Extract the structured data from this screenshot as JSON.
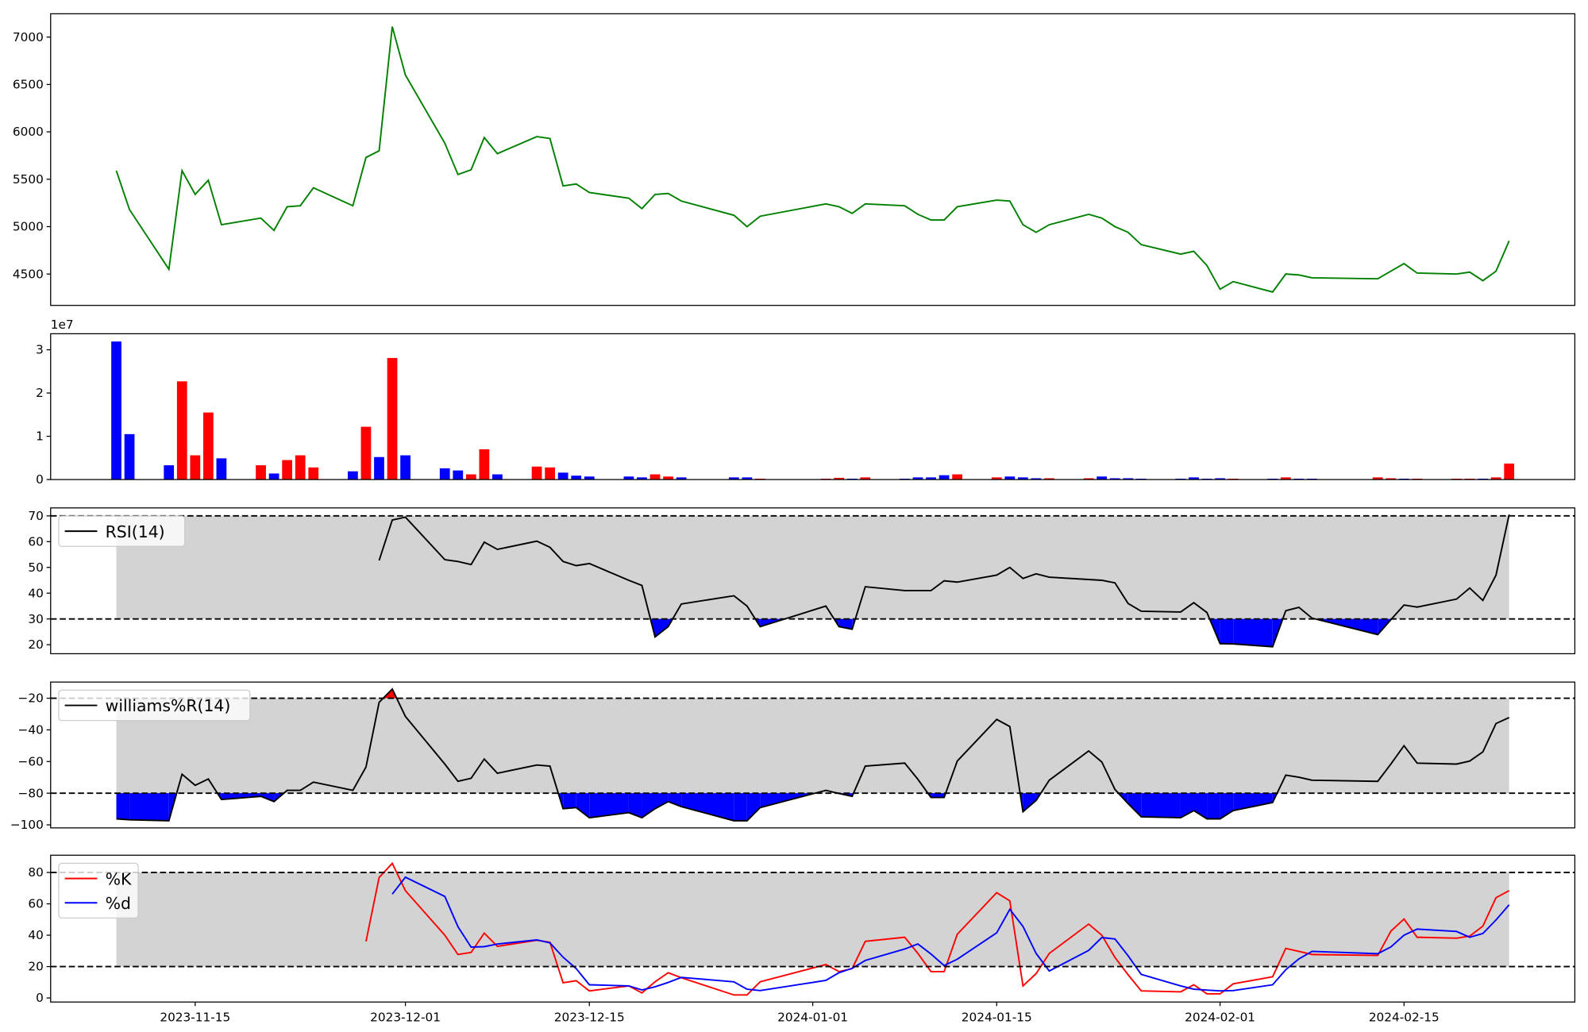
{
  "chart_data": [
    {
      "type": "line",
      "x": [
        "2023-11-09",
        "2023-11-10",
        "2023-11-13",
        "2023-11-14",
        "2023-11-15",
        "2023-11-16",
        "2023-11-17",
        "2023-11-20",
        "2023-11-21",
        "2023-11-22",
        "2023-11-23",
        "2023-11-24",
        "2023-11-27",
        "2023-11-28",
        "2023-11-29",
        "2023-11-30",
        "2023-12-01",
        "2023-12-04",
        "2023-12-05",
        "2023-12-06",
        "2023-12-07",
        "2023-12-08",
        "2023-12-11",
        "2023-12-12",
        "2023-12-13",
        "2023-12-14",
        "2023-12-15",
        "2023-12-18",
        "2023-12-19",
        "2023-12-20",
        "2023-12-21",
        "2023-12-22",
        "2023-12-26",
        "2023-12-27",
        "2023-12-28",
        "2024-01-02",
        "2024-01-03",
        "2024-01-04",
        "2024-01-05",
        "2024-01-08",
        "2024-01-09",
        "2024-01-10",
        "2024-01-11",
        "2024-01-12",
        "2024-01-15",
        "2024-01-16",
        "2024-01-17",
        "2024-01-18",
        "2024-01-19",
        "2024-01-22",
        "2024-01-23",
        "2024-01-24",
        "2024-01-25",
        "2024-01-26",
        "2024-01-29",
        "2024-01-30",
        "2024-01-31",
        "2024-02-01",
        "2024-02-02",
        "2024-02-05",
        "2024-02-06",
        "2024-02-07",
        "2024-02-08",
        "2024-02-13",
        "2024-02-14",
        "2024-02-15",
        "2024-02-16",
        "2024-02-19",
        "2024-02-20",
        "2024-02-21",
        "2024-02-22",
        "2024-02-23"
      ],
      "values": [
        5590,
        5180,
        4550,
        5590,
        5340,
        5490,
        5020,
        5090,
        4960,
        5210,
        5220,
        5410,
        5220,
        5730,
        5800,
        7110,
        6600,
        5880,
        5550,
        5600,
        5940,
        5770,
        5950,
        5930,
        5430,
        5450,
        5360,
        5300,
        5190,
        5340,
        5350,
        5270,
        5120,
        5000,
        5110,
        5240,
        5210,
        5140,
        5240,
        5220,
        5130,
        5070,
        5070,
        5210,
        5280,
        5270,
        5020,
        4940,
        5020,
        5130,
        5090,
        5000,
        4940,
        4810,
        4710,
        4740,
        4590,
        4340,
        4420,
        4310,
        4500,
        4490,
        4460,
        4450,
        4530,
        4610,
        4510,
        4500,
        4520,
        4430,
        4530,
        4850
      ],
      "color": "#008000",
      "xlim": [
        "2023-11-04",
        "2024-02-28"
      ],
      "ylim": [
        4169,
        7246
      ],
      "yticks": [
        4500,
        5000,
        5500,
        6000,
        6500,
        7000
      ]
    },
    {
      "type": "bar",
      "x": [
        "2023-11-09",
        "2023-11-10",
        "2023-11-13",
        "2023-11-14",
        "2023-11-15",
        "2023-11-16",
        "2023-11-17",
        "2023-11-20",
        "2023-11-21",
        "2023-11-22",
        "2023-11-23",
        "2023-11-24",
        "2023-11-27",
        "2023-11-28",
        "2023-11-29",
        "2023-11-30",
        "2023-12-01",
        "2023-12-04",
        "2023-12-05",
        "2023-12-06",
        "2023-12-07",
        "2023-12-08",
        "2023-12-11",
        "2023-12-12",
        "2023-12-13",
        "2023-12-14",
        "2023-12-15",
        "2023-12-18",
        "2023-12-19",
        "2023-12-20",
        "2023-12-21",
        "2023-12-22",
        "2023-12-26",
        "2023-12-27",
        "2023-12-28",
        "2024-01-02",
        "2024-01-03",
        "2024-01-04",
        "2024-01-05",
        "2024-01-08",
        "2024-01-09",
        "2024-01-10",
        "2024-01-11",
        "2024-01-12",
        "2024-01-15",
        "2024-01-16",
        "2024-01-17",
        "2024-01-18",
        "2024-01-19",
        "2024-01-22",
        "2024-01-23",
        "2024-01-24",
        "2024-01-25",
        "2024-01-26",
        "2024-01-29",
        "2024-01-30",
        "2024-01-31",
        "2024-02-01",
        "2024-02-02",
        "2024-02-05",
        "2024-02-06",
        "2024-02-07",
        "2024-02-08",
        "2024-02-13",
        "2024-02-14",
        "2024-02-15",
        "2024-02-16",
        "2024-02-19",
        "2024-02-20",
        "2024-02-21",
        "2024-02-22",
        "2024-02-23"
      ],
      "values": [
        3.19,
        1.05,
        0.33,
        2.27,
        0.56,
        1.55,
        0.49,
        0.33,
        0.14,
        0.45,
        0.56,
        0.28,
        0.19,
        1.22,
        0.52,
        2.81,
        0.56,
        0.26,
        0.21,
        0.12,
        0.7,
        0.12,
        0.3,
        0.28,
        0.16,
        0.09,
        0.07,
        0.07,
        0.05,
        0.12,
        0.07,
        0.05,
        0.05,
        0.05,
        0.02,
        0.02,
        0.04,
        0.02,
        0.05,
        0.02,
        0.05,
        0.05,
        0.1,
        0.12,
        0.05,
        0.07,
        0.05,
        0.03,
        0.03,
        0.03,
        0.07,
        0.03,
        0.03,
        0.02,
        0.02,
        0.05,
        0.02,
        0.03,
        0.02,
        0.02,
        0.05,
        0.02,
        0.02,
        0.05,
        0.03,
        0.02,
        0.02,
        0.02,
        0.02,
        0.02,
        0.05,
        0.37
      ],
      "colors": [
        "blue",
        "blue",
        "blue",
        "red",
        "red",
        "red",
        "blue",
        "red",
        "blue",
        "red",
        "red",
        "red",
        "blue",
        "red",
        "blue",
        "red",
        "blue",
        "blue",
        "blue",
        "red",
        "red",
        "blue",
        "red",
        "red",
        "blue",
        "blue",
        "blue",
        "blue",
        "blue",
        "red",
        "red",
        "blue",
        "blue",
        "blue",
        "red",
        "red",
        "red",
        "blue",
        "red",
        "blue",
        "blue",
        "blue",
        "blue",
        "red",
        "red",
        "blue",
        "blue",
        "blue",
        "red",
        "red",
        "blue",
        "blue",
        "blue",
        "blue",
        "blue",
        "blue",
        "blue",
        "blue",
        "red",
        "blue",
        "red",
        "blue",
        "blue",
        "red",
        "red",
        "blue",
        "red",
        "red",
        "red",
        "blue",
        "red",
        "red"
      ],
      "offset_text": "1e7",
      "xlim": [
        "2023-11-04",
        "2024-02-28"
      ],
      "ylim": [
        0,
        3.37
      ],
      "yticks": [
        0,
        1,
        2,
        3
      ]
    },
    {
      "type": "line",
      "x": [
        "2023-11-09",
        "2023-11-10",
        "2023-11-13",
        "2023-11-14",
        "2023-11-15",
        "2023-11-16",
        "2023-11-17",
        "2023-11-20",
        "2023-11-21",
        "2023-11-22",
        "2023-11-23",
        "2023-11-24",
        "2023-11-27",
        "2023-11-28",
        "2023-11-29",
        "2023-11-30",
        "2023-12-01",
        "2023-12-04",
        "2023-12-05",
        "2023-12-06",
        "2023-12-07",
        "2023-12-08",
        "2023-12-11",
        "2023-12-12",
        "2023-12-13",
        "2023-12-14",
        "2023-12-15",
        "2023-12-18",
        "2023-12-19",
        "2023-12-20",
        "2023-12-21",
        "2023-12-22",
        "2023-12-26",
        "2023-12-27",
        "2023-12-28",
        "2024-01-02",
        "2024-01-03",
        "2024-01-04",
        "2024-01-05",
        "2024-01-08",
        "2024-01-09",
        "2024-01-10",
        "2024-01-11",
        "2024-01-12",
        "2024-01-15",
        "2024-01-16",
        "2024-01-17",
        "2024-01-18",
        "2024-01-19",
        "2024-01-22",
        "2024-01-23",
        "2024-01-24",
        "2024-01-25",
        "2024-01-26",
        "2024-01-29",
        "2024-01-30",
        "2024-01-31",
        "2024-02-01",
        "2024-02-02",
        "2024-02-05",
        "2024-02-06",
        "2024-02-07",
        "2024-02-08",
        "2024-02-13",
        "2024-02-14",
        "2024-02-15",
        "2024-02-16",
        "2024-02-19",
        "2024-02-20",
        "2024-02-21",
        "2024-02-22",
        "2024-02-23"
      ],
      "series": [
        {
          "name": "RSI(14)",
          "color": "#000000",
          "values": [
            null,
            null,
            null,
            null,
            null,
            null,
            null,
            null,
            null,
            null,
            null,
            null,
            null,
            null,
            52.7,
            68.4,
            69.5,
            53,
            52.3,
            51.1,
            59.8,
            57,
            60.2,
            57.8,
            52.3,
            50.7,
            51.5,
            45,
            43,
            23,
            27,
            35.8,
            39,
            35,
            27,
            35,
            27,
            26,
            42.5,
            41,
            41,
            41,
            44.8,
            44.3,
            47,
            50,
            45.7,
            47.5,
            46.2,
            45.3,
            45,
            44,
            36,
            33,
            32.7,
            36.3,
            32.5,
            20.4,
            20.3,
            19.2,
            33.2,
            34.5,
            30.3,
            23.9,
            29.7,
            35.4,
            34.6,
            37.7,
            42,
            37.2,
            47,
            70.5
          ]
        }
      ],
      "band": [
        30,
        70
      ],
      "band_color": "#d3d3d3",
      "fill_below_color": "blue",
      "legend": "upper left",
      "xlim": [
        "2023-11-04",
        "2024-02-28"
      ],
      "ylim": [
        16.5,
        73.1
      ],
      "yticks": [
        20,
        30,
        40,
        50,
        60,
        70
      ]
    },
    {
      "type": "line",
      "x": [
        "2023-11-09",
        "2023-11-10",
        "2023-11-13",
        "2023-11-14",
        "2023-11-15",
        "2023-11-16",
        "2023-11-17",
        "2023-11-20",
        "2023-11-21",
        "2023-11-22",
        "2023-11-23",
        "2023-11-24",
        "2023-11-27",
        "2023-11-28",
        "2023-11-29",
        "2023-11-30",
        "2023-12-01",
        "2023-12-04",
        "2023-12-05",
        "2023-12-06",
        "2023-12-07",
        "2023-12-08",
        "2023-12-11",
        "2023-12-12",
        "2023-12-13",
        "2023-12-14",
        "2023-12-15",
        "2023-12-18",
        "2023-12-19",
        "2023-12-20",
        "2023-12-21",
        "2023-12-22",
        "2023-12-26",
        "2023-12-27",
        "2023-12-28",
        "2024-01-02",
        "2024-01-03",
        "2024-01-04",
        "2024-01-05",
        "2024-01-08",
        "2024-01-09",
        "2024-01-10",
        "2024-01-11",
        "2024-01-12",
        "2024-01-15",
        "2024-01-16",
        "2024-01-17",
        "2024-01-18",
        "2024-01-19",
        "2024-01-22",
        "2024-01-23",
        "2024-01-24",
        "2024-01-25",
        "2024-01-26",
        "2024-01-29",
        "2024-01-30",
        "2024-01-31",
        "2024-02-01",
        "2024-02-02",
        "2024-02-05",
        "2024-02-06",
        "2024-02-07",
        "2024-02-08",
        "2024-02-13",
        "2024-02-14",
        "2024-02-15",
        "2024-02-16",
        "2024-02-19",
        "2024-02-20",
        "2024-02-21",
        "2024-02-22",
        "2024-02-23"
      ],
      "series": [
        {
          "name": "williams%R(14)",
          "color": "#000000",
          "values": [
            -96.2,
            -96.8,
            -97.4,
            -68,
            -75,
            -71,
            -84,
            -82,
            -85.3,
            -78.2,
            -78.2,
            -73,
            -78.2,
            -63.5,
            -22.6,
            -14.2,
            -31.5,
            -61.6,
            -72.5,
            -70.6,
            -58.4,
            -67.4,
            -62.2,
            -62.9,
            -89.8,
            -89.1,
            -95.5,
            -92.3,
            -95.5,
            -89.8,
            -85.3,
            -88.5,
            -97.4,
            -97.4,
            -89.1,
            -78.2,
            -80.2,
            -82,
            -62.9,
            -61,
            -71.2,
            -82.7,
            -82.7,
            -59.7,
            -33.4,
            -37.9,
            -91.7,
            -84.6,
            -71.8,
            -53.3,
            -60.3,
            -77.6,
            -86.6,
            -94.9,
            -95.5,
            -91,
            -96.2,
            -96.2,
            -91,
            -85.9,
            -68.6,
            -69.9,
            -71.8,
            -72.5,
            -61.6,
            -50,
            -61,
            -61.6,
            -59.7,
            -53.9,
            -36,
            -32.2
          ]
        }
      ],
      "band": [
        -80,
        -20
      ],
      "band_color": "#d3d3d3",
      "fill_below_color": "blue",
      "fill_above_color": "red",
      "legend": "upper left",
      "xlim": [
        "2023-11-04",
        "2024-02-28"
      ],
      "ylim": [
        -101.9,
        -9.8
      ],
      "yticks": [
        {
          "value": -100,
          "label": "−100"
        },
        {
          "value": -80,
          "label": "−80"
        },
        {
          "value": -60,
          "label": "−60"
        },
        {
          "value": -40,
          "label": "−40"
        },
        {
          "value": -20,
          "label": "−20"
        }
      ]
    },
    {
      "type": "line",
      "x": [
        "2023-11-09",
        "2023-11-10",
        "2023-11-13",
        "2023-11-14",
        "2023-11-15",
        "2023-11-16",
        "2023-11-17",
        "2023-11-20",
        "2023-11-21",
        "2023-11-22",
        "2023-11-23",
        "2023-11-24",
        "2023-11-27",
        "2023-11-28",
        "2023-11-29",
        "2023-11-30",
        "2023-12-01",
        "2023-12-04",
        "2023-12-05",
        "2023-12-06",
        "2023-12-07",
        "2023-12-08",
        "2023-12-11",
        "2023-12-12",
        "2023-12-13",
        "2023-12-14",
        "2023-12-15",
        "2023-12-18",
        "2023-12-19",
        "2023-12-20",
        "2023-12-21",
        "2023-12-22",
        "2023-12-26",
        "2023-12-27",
        "2023-12-28",
        "2024-01-02",
        "2024-01-03",
        "2024-01-04",
        "2024-01-05",
        "2024-01-08",
        "2024-01-09",
        "2024-01-10",
        "2024-01-11",
        "2024-01-12",
        "2024-01-15",
        "2024-01-16",
        "2024-01-17",
        "2024-01-18",
        "2024-01-19",
        "2024-01-22",
        "2024-01-23",
        "2024-01-24",
        "2024-01-25",
        "2024-01-26",
        "2024-01-29",
        "2024-01-30",
        "2024-01-31",
        "2024-02-01",
        "2024-02-02",
        "2024-02-05",
        "2024-02-06",
        "2024-02-07",
        "2024-02-08",
        "2024-02-13",
        "2024-02-14",
        "2024-02-15",
        "2024-02-16",
        "2024-02-19",
        "2024-02-20",
        "2024-02-21",
        "2024-02-22",
        "2024-02-23"
      ],
      "series": [
        {
          "name": "%K",
          "color": "#ff0000",
          "values": [
            null,
            null,
            null,
            null,
            null,
            null,
            null,
            null,
            null,
            null,
            null,
            null,
            null,
            36,
            76.8,
            85.8,
            68.4,
            40,
            27.7,
            29,
            41.3,
            32.9,
            36.8,
            35.5,
            9.7,
            11,
            4.5,
            7.7,
            3.2,
            10.3,
            16.1,
            12.9,
            1.9,
            1.9,
            10.3,
            21.3,
            16.8,
            18.7,
            36.1,
            38.7,
            28.4,
            16.8,
            16.8,
            40.6,
            67.1,
            61.9,
            7.7,
            15.5,
            28.4,
            47.1,
            40,
            25.8,
            14.8,
            4.5,
            3.9,
            8.4,
            2.6,
            2.6,
            9,
            13.5,
            31.6,
            29.7,
            27.7,
            27.1,
            42.6,
            50.3,
            38.7,
            38.1,
            39.4,
            45.8,
            63.9,
            68.4
          ]
        },
        {
          "name": "%d",
          "color": "#0000ff",
          "values": [
            null,
            null,
            null,
            null,
            null,
            null,
            null,
            null,
            null,
            null,
            null,
            null,
            null,
            null,
            null,
            66.2,
            77,
            64.7,
            45.4,
            32.4,
            32.7,
            34.4,
            37,
            35.1,
            26,
            18.7,
            8.4,
            7.7,
            5.1,
            7.1,
            9.9,
            13.1,
            10.3,
            5.6,
            4.7,
            11.2,
            16.1,
            18.9,
            23.9,
            31.2,
            34.4,
            28,
            20.7,
            24.7,
            41.5,
            56.5,
            45.6,
            28.4,
            17.2,
            30.3,
            38.5,
            37.6,
            26.9,
            15,
            7.7,
            5.6,
            5,
            4.5,
            4.7,
            8.4,
            18,
            24.9,
            29.7,
            28.2,
            32.5,
            40,
            43.9,
            42.4,
            38.7,
            41.1,
            49.7,
            59.4
          ]
        }
      ],
      "band": [
        20,
        80
      ],
      "band_color": "#d3d3d3",
      "legend": "upper left",
      "xlim": [
        "2023-11-04",
        "2024-02-28"
      ],
      "ylim": [
        -2.6,
        91
      ],
      "yticks": [
        0,
        20,
        40,
        60,
        80
      ],
      "xticks": [
        "2023-11-15",
        "2023-12-01",
        "2023-12-15",
        "2024-01-01",
        "2024-01-15",
        "2024-02-01",
        "2024-02-15"
      ]
    }
  ]
}
